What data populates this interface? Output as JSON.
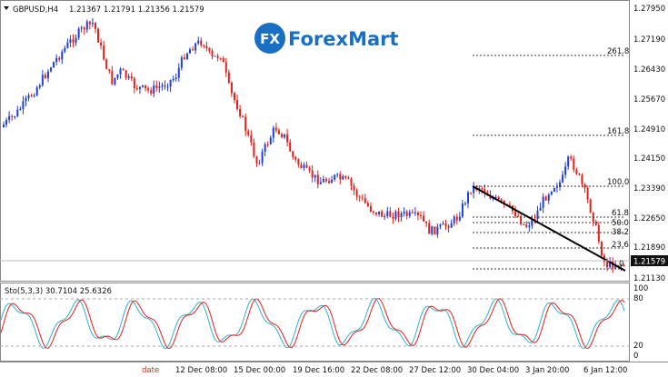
{
  "header": {
    "symbol_label": "GBPUSD,H4",
    "ohlc": "1.21367 1.21791 1.21356 1.21579"
  },
  "logo": {
    "mark": "FX",
    "text": "ForexMart"
  },
  "price_axis": {
    "labels": [
      "1.27950",
      "1.27190",
      "1.26430",
      "1.25670",
      "1.24910",
      "1.24150",
      "1.23390",
      "1.22650",
      "1.21890",
      "1.21130"
    ],
    "current_price": "1.21579"
  },
  "fibonacci": {
    "levels": [
      "261.8",
      "161.8",
      "100.0",
      "61.8",
      "50.0",
      "38.2",
      "23.6",
      "0"
    ]
  },
  "oscillator": {
    "title": "Sto(5,3,3) 30.7104 25.6326",
    "axis_labels": [
      "100",
      "80",
      "20",
      "0"
    ]
  },
  "time_axis": {
    "labels": [
      "date",
      "12 Dec 08:00",
      "15 Dec 00:00",
      "19 Dec 16:00",
      "22 Dec 08:00",
      "27 Dec 12:00",
      "30 Dec 04:00",
      "3 Jan 20:00",
      "6 Jan 12:00"
    ]
  },
  "colors": {
    "bull": "#1f3fd6",
    "bear": "#e0201b",
    "stoch_main": "#2fb3c8",
    "stoch_signal": "#e0201b",
    "trendline": "#000000",
    "logo_blue": "#1a6fc2"
  }
}
